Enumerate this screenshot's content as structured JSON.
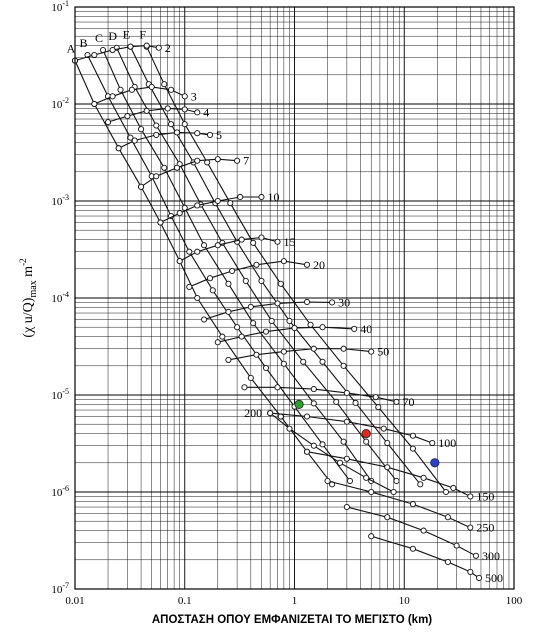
{
  "chart_data": {
    "type": "line",
    "title": "",
    "xlabel": "ΑΠΟΣΤΑΣΗ ΟΠΟΥ ΕΜΦΑΝΙΖΕΤΑΙ ΤΟ ΜΕΓΙΣΤΟ (km)",
    "ylabel": "(χ u/Q)max m-2",
    "xscale": "log",
    "yscale": "log",
    "xlim": [
      0.01,
      100
    ],
    "ylim": [
      1e-07,
      0.1
    ],
    "grid": true,
    "xtick_labels": [
      "0.01",
      "0.1",
      "1",
      "10",
      "100"
    ],
    "ytick_labels": [
      {
        "base": "10",
        "exp": "-1"
      },
      {
        "base": "10",
        "exp": "-2"
      },
      {
        "base": "10",
        "exp": "-3"
      },
      {
        "base": "10",
        "exp": "-4"
      },
      {
        "base": "10",
        "exp": "-5"
      },
      {
        "base": "10",
        "exp": "-6"
      },
      {
        "base": "10",
        "exp": "-7"
      }
    ],
    "stability_classes": [
      {
        "name": "A",
        "x": [
          0.01,
          0.015,
          0.025,
          0.04,
          0.06,
          0.09,
          0.13,
          0.22,
          0.4,
          0.75,
          1.3,
          2.2
        ],
        "y": [
          0.028,
          0.01,
          0.0035,
          0.0014,
          0.0006,
          0.00024,
          0.0001,
          4e-05,
          1.5e-05,
          6e-06,
          2.6e-06,
          1.2e-06
        ]
      },
      {
        "name": "B",
        "x": [
          0.013,
          0.02,
          0.032,
          0.05,
          0.075,
          0.11,
          0.18,
          0.3,
          0.55,
          1.0,
          1.8,
          3.2
        ],
        "y": [
          0.032,
          0.012,
          0.0045,
          0.0018,
          0.0007,
          0.0003,
          0.00012,
          5e-05,
          1.9e-05,
          7.6e-06,
          3.1e-06,
          1.3e-06
        ]
      },
      {
        "name": "C",
        "x": [
          0.018,
          0.026,
          0.04,
          0.065,
          0.1,
          0.15,
          0.25,
          0.42,
          0.8,
          1.5,
          2.8,
          5.0
        ],
        "y": [
          0.036,
          0.014,
          0.0055,
          0.0022,
          0.00085,
          0.00035,
          0.00014,
          5.5e-05,
          2.1e-05,
          8.2e-06,
          3.3e-06,
          1.3e-06
        ]
      },
      {
        "name": "D",
        "x": [
          0.024,
          0.035,
          0.055,
          0.09,
          0.14,
          0.22,
          0.36,
          0.62,
          1.2,
          2.4,
          4.5,
          8.5
        ],
        "y": [
          0.038,
          0.015,
          0.006,
          0.0024,
          0.00092,
          0.00037,
          0.00015,
          5.8e-05,
          2.2e-05,
          8.5e-06,
          3.3e-06,
          1.3e-06
        ]
      },
      {
        "name": "E",
        "x": [
          0.032,
          0.047,
          0.075,
          0.12,
          0.19,
          0.3,
          0.5,
          0.9,
          1.8,
          3.6,
          7.0,
          14.0
        ],
        "y": [
          0.039,
          0.016,
          0.0062,
          0.0025,
          0.00095,
          0.00038,
          0.00015,
          5.8e-05,
          2.2e-05,
          8.3e-06,
          3.2e-06,
          1.2e-06
        ]
      },
      {
        "name": "F",
        "x": [
          0.045,
          0.065,
          0.1,
          0.16,
          0.26,
          0.42,
          0.75,
          1.4,
          2.8,
          5.8,
          12.0,
          24.0
        ],
        "y": [
          0.039,
          0.016,
          0.0062,
          0.0025,
          0.00095,
          0.00037,
          0.00014,
          5.3e-05,
          2e-05,
          7.5e-06,
          2.8e-06,
          1e-06
        ]
      }
    ],
    "effective_heights": [
      {
        "label": "2",
        "x": [
          0.01,
          0.015,
          0.022,
          0.032,
          0.045,
          0.058
        ],
        "y": [
          0.028,
          0.032,
          0.036,
          0.039,
          0.04,
          0.038
        ]
      },
      {
        "label": "3",
        "x": [
          0.015,
          0.022,
          0.033,
          0.05,
          0.075,
          0.1
        ],
        "y": [
          0.01,
          0.012,
          0.014,
          0.015,
          0.014,
          0.012
        ]
      },
      {
        "label": "4",
        "x": [
          0.02,
          0.03,
          0.045,
          0.07,
          0.1,
          0.13
        ],
        "y": [
          0.0065,
          0.0075,
          0.0085,
          0.009,
          0.0088,
          0.0082
        ]
      },
      {
        "label": "5",
        "x": [
          0.025,
          0.035,
          0.055,
          0.085,
          0.13,
          0.17
        ],
        "y": [
          0.0035,
          0.0042,
          0.0048,
          0.0051,
          0.005,
          0.0048
        ]
      },
      {
        "label": "7",
        "x": [
          0.04,
          0.055,
          0.085,
          0.13,
          0.2,
          0.3
        ],
        "y": [
          0.0014,
          0.0018,
          0.0022,
          0.0026,
          0.0027,
          0.0026
        ]
      },
      {
        "label": "10",
        "x": [
          0.06,
          0.09,
          0.13,
          0.2,
          0.32,
          0.5
        ],
        "y": [
          0.0006,
          0.00075,
          0.0009,
          0.001,
          0.0011,
          0.0011
        ]
      },
      {
        "label": "15",
        "x": [
          0.09,
          0.13,
          0.2,
          0.33,
          0.5,
          0.7
        ],
        "y": [
          0.00024,
          0.0003,
          0.00035,
          0.0004,
          0.00042,
          0.00038
        ]
      },
      {
        "label": "20",
        "x": [
          0.11,
          0.17,
          0.27,
          0.45,
          0.8,
          1.3
        ],
        "y": [
          0.00013,
          0.00016,
          0.00019,
          0.00022,
          0.00024,
          0.00022
        ]
      },
      {
        "label": "30",
        "x": [
          0.15,
          0.25,
          0.4,
          0.7,
          1.3,
          2.2
        ],
        "y": [
          6e-05,
          7.2e-05,
          8.1e-05,
          8.8e-05,
          9.1e-05,
          9e-05
        ]
      },
      {
        "label": "40",
        "x": [
          0.2,
          0.33,
          0.55,
          1.0,
          1.8,
          3.5
        ],
        "y": [
          3.5e-05,
          4e-05,
          4.5e-05,
          4.9e-05,
          5e-05,
          4.8e-05
        ]
      },
      {
        "label": "50",
        "x": [
          0.25,
          0.45,
          0.8,
          1.5,
          2.8,
          5.0
        ],
        "y": [
          2.3e-05,
          2.6e-05,
          2.8e-05,
          3e-05,
          3e-05,
          2.8e-05
        ]
      },
      {
        "label": "70",
        "x": [
          0.35,
          0.7,
          1.5,
          3.0,
          5.5,
          8.5
        ],
        "y": [
          1.2e-05,
          1.2e-05,
          1.15e-05,
          1.05e-05,
          9.5e-06,
          8.5e-06
        ]
      },
      {
        "label": "100",
        "x": [
          0.6,
          1.3,
          3.0,
          6.5,
          12.0,
          18.0
        ],
        "y": [
          6.5e-06,
          6e-06,
          5.3e-06,
          4.5e-06,
          3.8e-06,
          3.2e-06
        ]
      },
      {
        "label": "150",
        "x": [
          1.3,
          3.0,
          7.0,
          15.0,
          28.0,
          40.0
        ],
        "y": [
          2.6e-06,
          2.2e-06,
          1.8e-06,
          1.4e-06,
          1.1e-06,
          9e-07
        ]
      },
      {
        "label": "200",
        "x": [
          0.6,
          0.9,
          1.5,
          2.6,
          4.5,
          8.0
        ],
        "y": [
          6.5e-06,
          4.5e-06,
          3e-06,
          2e-06,
          1.4e-06,
          1e-06
        ]
      },
      {
        "label": "250",
        "x": [
          2.0,
          5.0,
          12.0,
          25.0,
          40.0
        ],
        "y": [
          1.3e-06,
          1e-06,
          7.5e-07,
          5.5e-07,
          4.3e-07
        ]
      },
      {
        "label": "300",
        "x": [
          3.0,
          7.0,
          15.0,
          30.0,
          45.0
        ],
        "y": [
          7e-07,
          5.5e-07,
          4e-07,
          2.8e-07,
          2.2e-07
        ]
      },
      {
        "label": "500",
        "x": [
          5.0,
          12.0,
          25.0,
          40.0,
          48.0
        ],
        "y": [
          3.5e-07,
          2.6e-07,
          1.9e-07,
          1.5e-07,
          1.3e-07
        ]
      }
    ],
    "highlighted_points": [
      {
        "x": 1.1,
        "y": 8e-06,
        "color": "#2ca02c"
      },
      {
        "x": 4.5,
        "y": 4e-06,
        "color": "#e0261f"
      },
      {
        "x": 19,
        "y": 2e-06,
        "color": "#2b3fd0"
      }
    ]
  }
}
